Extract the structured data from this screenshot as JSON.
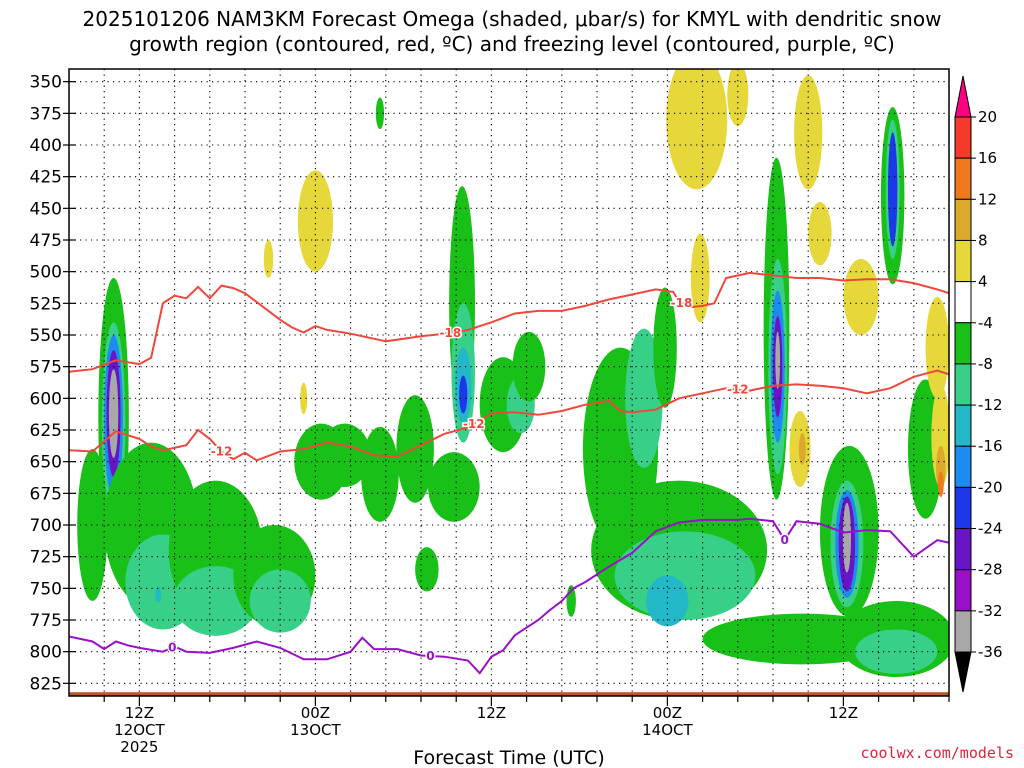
{
  "chart_data": {
    "type": "heatmap",
    "title_line1": "2025101206 NAM3KM Forecast Omega (shaded, μbar/s) for KMYL with dendritic snow",
    "title_line2": "growth region (contoured, red, ºC) and freezing level (contoured, purple, ºC)",
    "xlabel": "Forecast Time (UTC)",
    "credit": "coolwx.com/models",
    "ylim": [
      835,
      340
    ],
    "yticks": [
      350,
      375,
      400,
      425,
      450,
      475,
      500,
      525,
      550,
      575,
      600,
      625,
      650,
      675,
      700,
      725,
      750,
      775,
      800,
      825
    ],
    "xlim": [
      6,
      81
    ],
    "xticks": [
      {
        "hour": 12,
        "line1": "12Z",
        "line2": "12OCT",
        "line3": "2025"
      },
      {
        "hour": 27,
        "line1": "00Z",
        "line2": "13OCT",
        "line3": ""
      },
      {
        "hour": 42,
        "line1": "12Z",
        "line2": "",
        "line3": ""
      },
      {
        "hour": 57,
        "line1": "00Z",
        "line2": "14OCT",
        "line3": ""
      },
      {
        "hour": 72,
        "line1": "12Z",
        "line2": "",
        "line3": ""
      }
    ],
    "colorbar": {
      "levels": [
        20,
        16,
        12,
        8,
        4,
        -4,
        -8,
        -12,
        -16,
        -20,
        -24,
        -28,
        -32,
        -36
      ],
      "colors": [
        "#ff0080",
        "#f53a2a",
        "#ef7a1e",
        "#dcaa2a",
        "#e6d83a",
        "#ffffff",
        "#18c018",
        "#38d088",
        "#22b8c8",
        "#1c8cf0",
        "#1c38e8",
        "#6a14c8",
        "#9a10c8",
        "#a8a8a8",
        "#000000"
      ]
    },
    "omega_cells": [
      {
        "t": 9.8,
        "p": 615,
        "rt": 1.3,
        "rp": 220,
        "v": -8
      },
      {
        "t": 9.8,
        "p": 620,
        "rt": 1.0,
        "rp": 160,
        "v": -12
      },
      {
        "t": 9.8,
        "p": 615,
        "rt": 0.8,
        "rp": 130,
        "v": -20
      },
      {
        "t": 9.8,
        "p": 612,
        "rt": 0.6,
        "rp": 100,
        "v": -28
      },
      {
        "t": 9.8,
        "p": 612,
        "rt": 0.4,
        "rp": 70,
        "v": -36
      },
      {
        "t": 8.0,
        "p": 700,
        "rt": 1.3,
        "rp": 120,
        "v": -8
      },
      {
        "t": 13.0,
        "p": 700,
        "rt": 4.0,
        "rp": 130,
        "v": -8
      },
      {
        "t": 14.0,
        "p": 745,
        "rt": 3.2,
        "rp": 75,
        "v": -12
      },
      {
        "t": 18.5,
        "p": 720,
        "rt": 4.0,
        "rp": 110,
        "v": -8
      },
      {
        "t": 18.5,
        "p": 760,
        "rt": 3.6,
        "rp": 55,
        "v": -12
      },
      {
        "t": 13.6,
        "p": 755,
        "rt": 0.25,
        "rp": 12,
        "v": -16
      },
      {
        "t": 23.5,
        "p": 740,
        "rt": 3.5,
        "rp": 80,
        "v": -8
      },
      {
        "t": 24.0,
        "p": 760,
        "rt": 2.6,
        "rp": 50,
        "v": -12
      },
      {
        "t": 27.5,
        "p": 650,
        "rt": 2.3,
        "rp": 60,
        "v": -8
      },
      {
        "t": 29.5,
        "p": 645,
        "rt": 2.2,
        "rp": 50,
        "v": -8
      },
      {
        "t": 32.5,
        "p": 660,
        "rt": 1.6,
        "rp": 75,
        "v": -8
      },
      {
        "t": 35.5,
        "p": 640,
        "rt": 1.6,
        "rp": 85,
        "v": -8
      },
      {
        "t": 36.5,
        "p": 735,
        "rt": 1.0,
        "rp": 35,
        "v": -8
      },
      {
        "t": 39.5,
        "p": 525,
        "rt": 1.1,
        "rp": 185,
        "v": -8
      },
      {
        "t": 39.6,
        "p": 580,
        "rt": 1.0,
        "rp": 110,
        "v": -12
      },
      {
        "t": 39.6,
        "p": 590,
        "rt": 0.7,
        "rp": 60,
        "v": -16
      },
      {
        "t": 39.6,
        "p": 597,
        "rt": 0.35,
        "rp": 30,
        "v": -24
      },
      {
        "t": 38.8,
        "p": 670,
        "rt": 2.2,
        "rp": 55,
        "v": -8
      },
      {
        "t": 43.0,
        "p": 605,
        "rt": 2.0,
        "rp": 75,
        "v": -8
      },
      {
        "t": 44.5,
        "p": 605,
        "rt": 1.2,
        "rp": 45,
        "v": -12
      },
      {
        "t": 45.2,
        "p": 575,
        "rt": 1.4,
        "rp": 55,
        "v": -8
      },
      {
        "t": 32.5,
        "p": 375,
        "rt": 0.35,
        "rp": 25,
        "v": -8
      },
      {
        "t": 48.8,
        "p": 760,
        "rt": 0.4,
        "rp": 25,
        "v": -8
      },
      {
        "t": 53.0,
        "p": 640,
        "rt": 3.2,
        "rp": 160,
        "v": -8
      },
      {
        "t": 55.0,
        "p": 600,
        "rt": 1.6,
        "rp": 110,
        "v": -12
      },
      {
        "t": 56.8,
        "p": 560,
        "rt": 1.0,
        "rp": 95,
        "v": -8
      },
      {
        "t": 58.0,
        "p": 720,
        "rt": 7.5,
        "rp": 110,
        "v": -8
      },
      {
        "t": 58.5,
        "p": 740,
        "rt": 6.0,
        "rp": 70,
        "v": -12
      },
      {
        "t": 57.0,
        "p": 760,
        "rt": 1.8,
        "rp": 40,
        "v": -16
      },
      {
        "t": 66.3,
        "p": 545,
        "rt": 1.1,
        "rp": 270,
        "v": -8
      },
      {
        "t": 66.4,
        "p": 575,
        "rt": 0.8,
        "rp": 170,
        "v": -12
      },
      {
        "t": 66.4,
        "p": 575,
        "rt": 0.6,
        "rp": 120,
        "v": -20
      },
      {
        "t": 66.4,
        "p": 575,
        "rt": 0.4,
        "rp": 80,
        "v": -28
      },
      {
        "t": 66.4,
        "p": 570,
        "rt": 0.2,
        "rp": 45,
        "v": -36
      },
      {
        "t": 72.5,
        "p": 705,
        "rt": 2.5,
        "rp": 135,
        "v": -8
      },
      {
        "t": 72.3,
        "p": 715,
        "rt": 1.4,
        "rp": 100,
        "v": -12
      },
      {
        "t": 72.3,
        "p": 715,
        "rt": 1.0,
        "rp": 85,
        "v": -20
      },
      {
        "t": 72.3,
        "p": 715,
        "rt": 0.7,
        "rp": 75,
        "v": -28
      },
      {
        "t": 72.3,
        "p": 710,
        "rt": 0.35,
        "rp": 55,
        "v": -36
      },
      {
        "t": 76.2,
        "p": 440,
        "rt": 1.0,
        "rp": 140,
        "v": -8
      },
      {
        "t": 76.2,
        "p": 435,
        "rt": 0.6,
        "rp": 110,
        "v": -12
      },
      {
        "t": 76.2,
        "p": 435,
        "rt": 0.4,
        "rp": 90,
        "v": -24
      },
      {
        "t": 68.5,
        "p": 790,
        "rt": 8.5,
        "rp": 40,
        "v": -8
      },
      {
        "t": 76.5,
        "p": 790,
        "rt": 5.0,
        "rp": 60,
        "v": -8
      },
      {
        "t": 76.5,
        "p": 800,
        "rt": 3.5,
        "rp": 35,
        "v": -12
      },
      {
        "t": 79.0,
        "p": 640,
        "rt": 1.5,
        "rp": 110,
        "v": -8
      },
      {
        "t": 27.0,
        "p": 460,
        "rt": 1.5,
        "rp": 80,
        "v": 4
      },
      {
        "t": 23.0,
        "p": 490,
        "rt": 0.4,
        "rp": 30,
        "v": 4
      },
      {
        "t": 59.5,
        "p": 380,
        "rt": 2.6,
        "rp": 110,
        "v": 4
      },
      {
        "t": 59.8,
        "p": 505,
        "rt": 0.8,
        "rp": 70,
        "v": 4
      },
      {
        "t": 63.0,
        "p": 360,
        "rt": 0.9,
        "rp": 50,
        "v": 4
      },
      {
        "t": 69.0,
        "p": 390,
        "rt": 1.2,
        "rp": 90,
        "v": 4
      },
      {
        "t": 70.0,
        "p": 470,
        "rt": 1.0,
        "rp": 50,
        "v": 4
      },
      {
        "t": 73.5,
        "p": 520,
        "rt": 1.5,
        "rp": 60,
        "v": 4
      },
      {
        "t": 68.3,
        "p": 640,
        "rt": 0.9,
        "rp": 60,
        "v": 4
      },
      {
        "t": 80.0,
        "p": 560,
        "rt": 1.0,
        "rp": 80,
        "v": 4
      },
      {
        "t": 80.3,
        "p": 630,
        "rt": 0.8,
        "rp": 80,
        "v": 4
      },
      {
        "t": 80.3,
        "p": 655,
        "rt": 0.4,
        "rp": 35,
        "v": 8
      },
      {
        "t": 80.3,
        "p": 668,
        "rt": 0.25,
        "rp": 20,
        "v": 12
      },
      {
        "t": 68.5,
        "p": 640,
        "rt": 0.3,
        "rp": 25,
        "v": 8
      },
      {
        "t": 26.0,
        "p": 600,
        "rt": 0.3,
        "rp": 25,
        "v": 4
      }
    ],
    "contours": [
      {
        "name": "dgz-upper",
        "label": "-18",
        "color": "#f0473c",
        "x": [
          6,
          8,
          10,
          12,
          13,
          14,
          15,
          16,
          17,
          18,
          19,
          20,
          21,
          22,
          23,
          24,
          25,
          26,
          27,
          28,
          30,
          33,
          36,
          38,
          40,
          42,
          44,
          46,
          48,
          50,
          52,
          54,
          56,
          57.5,
          58,
          59,
          60,
          61,
          62,
          63,
          64,
          66,
          68,
          70,
          72,
          74,
          76,
          78,
          80,
          81
        ],
        "y": [
          579,
          577,
          570,
          573,
          568,
          525,
          519,
          521,
          512,
          521,
          511,
          513,
          517,
          524,
          531,
          538,
          544,
          548,
          543,
          546,
          549,
          555,
          551,
          549,
          546,
          540,
          533,
          531,
          531,
          527,
          522,
          518,
          514,
          516,
          524,
          528,
          527,
          525,
          505,
          503,
          501,
          503,
          505,
          505,
          507,
          506,
          506,
          509,
          514,
          517
        ],
        "labels": [
          {
            "x": 38.5,
            "text": "-18"
          },
          {
            "x": 58.2,
            "text": "-18"
          }
        ]
      },
      {
        "name": "dgz-lower",
        "label": "-12",
        "color": "#f0473c",
        "x": [
          6,
          8,
          10,
          12,
          13,
          14,
          16,
          17,
          18,
          19,
          20,
          21,
          22,
          24,
          26,
          28,
          30,
          32,
          34,
          36,
          38,
          40,
          42,
          44,
          46,
          48,
          50,
          52,
          53,
          54,
          56,
          58,
          60,
          62,
          64,
          66,
          68,
          70,
          72,
          74,
          76,
          78,
          80,
          81
        ],
        "y": [
          641,
          642,
          626,
          632,
          638,
          641,
          637,
          625,
          632,
          642,
          648,
          643,
          649,
          642,
          640,
          635,
          638,
          645,
          646,
          637,
          628,
          623,
          612,
          611,
          613,
          610,
          605,
          602,
          610,
          611,
          609,
          600,
          596,
          592,
          594,
          590,
          589,
          590,
          592,
          596,
          592,
          583,
          578,
          581
        ],
        "labels": [
          {
            "x": 19.0,
            "text": "-12"
          },
          {
            "x": 40.5,
            "text": "-12"
          },
          {
            "x": 63.0,
            "text": "-12"
          }
        ]
      },
      {
        "name": "freezing-level",
        "label": "0",
        "color": "#9a10c8",
        "x": [
          6,
          8,
          9,
          10,
          11,
          12,
          14,
          15,
          16,
          18,
          20,
          22,
          24,
          26,
          28,
          30,
          31,
          32,
          34,
          36,
          38,
          40,
          41,
          42,
          43,
          44,
          46,
          47,
          48,
          49,
          50,
          52,
          54,
          56,
          58,
          60,
          62,
          63,
          64,
          66,
          67,
          68,
          70,
          72,
          74,
          76,
          78,
          80,
          81
        ],
        "y": [
          788,
          792,
          798,
          792,
          795,
          797,
          800,
          796,
          800,
          801,
          797,
          792,
          797,
          806,
          806,
          800,
          789,
          798,
          798,
          803,
          804,
          807,
          817,
          804,
          799,
          787,
          775,
          767,
          760,
          750,
          745,
          733,
          722,
          705,
          698,
          696,
          696,
          696,
          695,
          697,
          712,
          697,
          699,
          706,
          704,
          705,
          725,
          712,
          714
        ],
        "labels": [
          {
            "x": 14.8,
            "text": "0"
          },
          {
            "x": 36.8,
            "text": "0"
          },
          {
            "x": 67.0,
            "text": "0"
          }
        ]
      }
    ],
    "ground_color": "#b45a2a"
  }
}
